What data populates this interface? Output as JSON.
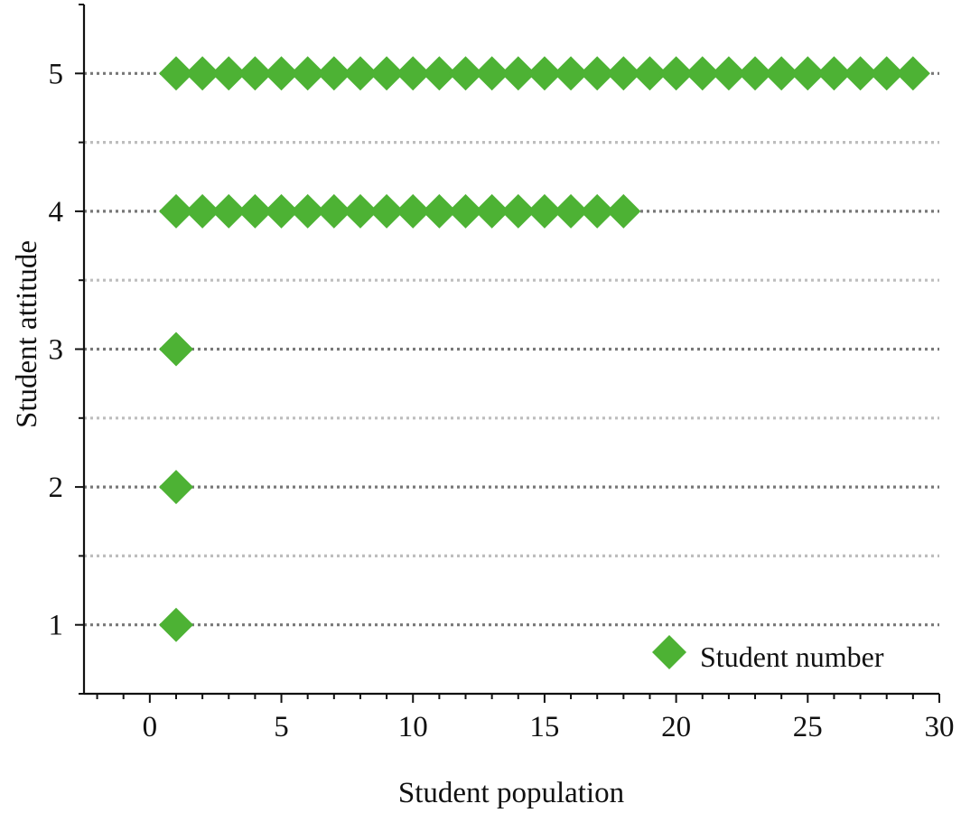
{
  "chart_data": {
    "type": "scatter",
    "title": "",
    "xlabel": "Student population",
    "ylabel": "Student attitude",
    "xlim": [
      -2.5,
      30
    ],
    "ylim": [
      0.5,
      5.5
    ],
    "x_ticks": [
      0,
      5,
      10,
      15,
      20,
      25,
      30
    ],
    "x_minor_step": 1,
    "y_ticks": [
      1,
      2,
      3,
      4,
      5
    ],
    "grid": "horizontal-dotted",
    "legend_position": "bottom-right",
    "series": [
      {
        "name": "Student number",
        "marker": "diamond",
        "color": "#4db234",
        "points": [
          {
            "attitude": 5,
            "population": [
              1,
              2,
              3,
              4,
              5,
              6,
              7,
              8,
              9,
              10,
              11,
              12,
              13,
              14,
              15,
              16,
              17,
              18,
              19,
              20,
              21,
              22,
              23,
              24,
              25,
              26,
              27,
              28,
              29
            ]
          },
          {
            "attitude": 4,
            "population": [
              1,
              2,
              3,
              4,
              5,
              6,
              7,
              8,
              9,
              10,
              11,
              12,
              13,
              14,
              15,
              16,
              17,
              18
            ]
          },
          {
            "attitude": 3,
            "population": [
              1
            ]
          },
          {
            "attitude": 2,
            "population": [
              1
            ]
          },
          {
            "attitude": 1,
            "population": [
              1
            ]
          }
        ]
      }
    ]
  },
  "colors": {
    "axis": "#111111",
    "major_grid": "#777777",
    "minor_grid": "#bdbdbd"
  }
}
